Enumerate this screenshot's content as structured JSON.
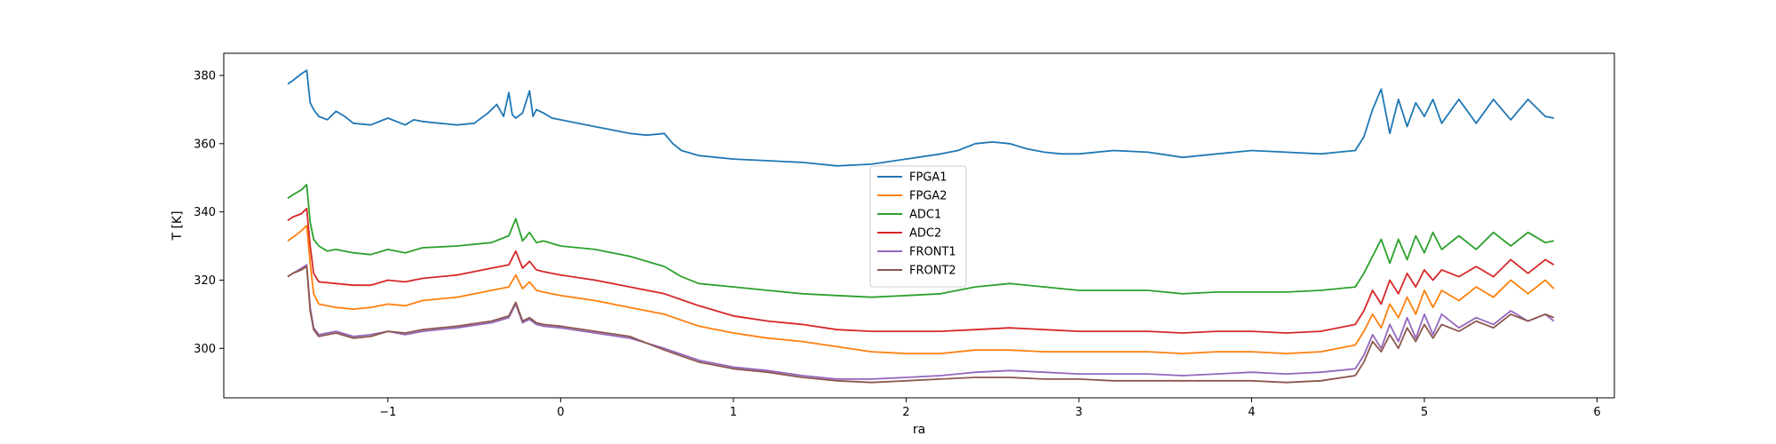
{
  "chart_data": {
    "type": "line",
    "title": "",
    "xlabel": "ra",
    "ylabel": "T [K]",
    "xlim": [
      -1.95,
      6.1
    ],
    "ylim": [
      285.5,
      386.5
    ],
    "xticks": [
      -1,
      0,
      1,
      2,
      3,
      4,
      5,
      6
    ],
    "yticks": [
      300,
      320,
      340,
      360,
      380
    ],
    "grid": false,
    "legend": "center",
    "series": [
      {
        "name": "FPGA1",
        "color": "#1f77b4",
        "x": [
          -1.58,
          -1.55,
          -1.5,
          -1.47,
          -1.45,
          -1.43,
          -1.4,
          -1.35,
          -1.3,
          -1.25,
          -1.2,
          -1.1,
          -1.0,
          -0.9,
          -0.85,
          -0.8,
          -0.7,
          -0.6,
          -0.5,
          -0.42,
          -0.37,
          -0.33,
          -0.3,
          -0.28,
          -0.26,
          -0.22,
          -0.18,
          -0.16,
          -0.14,
          -0.1,
          -0.05,
          0.0,
          0.1,
          0.2,
          0.3,
          0.4,
          0.5,
          0.6,
          0.65,
          0.7,
          0.8,
          0.9,
          1.0,
          1.2,
          1.4,
          1.6,
          1.8,
          2.0,
          2.2,
          2.3,
          2.4,
          2.5,
          2.6,
          2.7,
          2.8,
          2.9,
          3.0,
          3.2,
          3.4,
          3.6,
          3.8,
          4.0,
          4.2,
          4.4,
          4.5,
          4.6,
          4.65,
          4.7,
          4.75,
          4.8,
          4.85,
          4.9,
          4.95,
          5.0,
          5.05,
          5.1,
          5.2,
          5.3,
          5.4,
          5.5,
          5.6,
          5.7,
          5.75
        ],
        "y": [
          377.5,
          378.5,
          380.5,
          381.5,
          372,
          370,
          368,
          367,
          369.5,
          368,
          366,
          365.5,
          367.5,
          365.5,
          367,
          366.5,
          366,
          365.5,
          366,
          369,
          371.5,
          368,
          375,
          368.5,
          367.5,
          369,
          375.5,
          368,
          370,
          369,
          367.5,
          367,
          366,
          365,
          364,
          363,
          362.5,
          363,
          360,
          358,
          356.5,
          356,
          355.5,
          355,
          354.5,
          353.5,
          354,
          355.5,
          357,
          358,
          360,
          360.5,
          360,
          358.5,
          357.5,
          357,
          357,
          358,
          357.5,
          356,
          357,
          358,
          357.5,
          357,
          357.5,
          358,
          362,
          370,
          376,
          363,
          373,
          365,
          372,
          368,
          373,
          366,
          373,
          366,
          373,
          367,
          373,
          368,
          367.5
        ]
      },
      {
        "name": "FPGA2",
        "color": "#ff7f0e",
        "x": [
          -1.58,
          -1.55,
          -1.5,
          -1.47,
          -1.45,
          -1.43,
          -1.4,
          -1.3,
          -1.2,
          -1.1,
          -1.0,
          -0.9,
          -0.8,
          -0.6,
          -0.4,
          -0.3,
          -0.26,
          -0.22,
          -0.18,
          -0.14,
          -0.1,
          0.0,
          0.2,
          0.4,
          0.6,
          0.8,
          1.0,
          1.2,
          1.4,
          1.6,
          1.8,
          2.0,
          2.2,
          2.4,
          2.6,
          2.8,
          3.0,
          3.2,
          3.4,
          3.6,
          3.8,
          4.0,
          4.2,
          4.4,
          4.6,
          4.65,
          4.7,
          4.75,
          4.8,
          4.85,
          4.9,
          4.95,
          5.0,
          5.05,
          5.1,
          5.2,
          5.3,
          5.4,
          5.5,
          5.6,
          5.7,
          5.75
        ],
        "y": [
          331.5,
          332.5,
          334.5,
          336,
          325,
          316,
          313,
          312,
          311.5,
          312,
          313,
          312.5,
          314,
          315,
          317,
          318,
          321.5,
          317.5,
          319.5,
          317,
          316.5,
          315.5,
          314,
          312,
          310,
          306.5,
          304.5,
          303,
          302,
          300.5,
          299,
          298.5,
          298.5,
          299.5,
          299.5,
          299,
          299,
          299,
          299,
          298.5,
          299,
          299,
          298.5,
          299,
          301,
          305,
          310,
          306,
          313,
          309,
          315,
          310,
          317,
          312,
          317,
          314,
          318,
          315,
          320,
          316,
          320,
          317.5
        ]
      },
      {
        "name": "ADC1",
        "color": "#2ca02c",
        "x": [
          -1.58,
          -1.55,
          -1.5,
          -1.47,
          -1.45,
          -1.43,
          -1.4,
          -1.35,
          -1.3,
          -1.2,
          -1.1,
          -1.0,
          -0.9,
          -0.8,
          -0.6,
          -0.4,
          -0.3,
          -0.26,
          -0.22,
          -0.18,
          -0.14,
          -0.1,
          0.0,
          0.2,
          0.4,
          0.6,
          0.7,
          0.8,
          1.0,
          1.2,
          1.4,
          1.6,
          1.8,
          2.0,
          2.2,
          2.4,
          2.6,
          2.8,
          3.0,
          3.2,
          3.4,
          3.6,
          3.8,
          4.0,
          4.2,
          4.4,
          4.6,
          4.65,
          4.7,
          4.75,
          4.8,
          4.85,
          4.9,
          4.95,
          5.0,
          5.05,
          5.1,
          5.2,
          5.3,
          5.4,
          5.5,
          5.6,
          5.7,
          5.75
        ],
        "y": [
          344,
          345,
          346.5,
          348,
          337,
          332,
          330,
          328.5,
          329,
          328,
          327.5,
          329,
          328,
          329.5,
          330,
          331,
          333,
          338,
          331.5,
          334,
          331,
          331.5,
          330,
          329,
          327,
          324,
          321,
          319,
          318,
          317,
          316,
          315.5,
          315,
          315.5,
          316,
          318,
          319,
          318,
          317,
          317,
          317,
          316,
          316.5,
          316.5,
          316.5,
          317,
          318,
          322,
          327,
          332,
          325,
          332,
          326,
          333,
          328,
          334,
          329,
          333,
          329,
          334,
          330,
          334,
          331,
          331.5
        ]
      },
      {
        "name": "ADC2",
        "color": "#d62728",
        "x": [
          -1.58,
          -1.55,
          -1.5,
          -1.47,
          -1.45,
          -1.43,
          -1.4,
          -1.3,
          -1.2,
          -1.1,
          -1.0,
          -0.9,
          -0.8,
          -0.6,
          -0.4,
          -0.3,
          -0.26,
          -0.22,
          -0.18,
          -0.14,
          -0.1,
          0.0,
          0.2,
          0.4,
          0.6,
          0.8,
          1.0,
          1.2,
          1.4,
          1.6,
          1.8,
          2.0,
          2.2,
          2.4,
          2.6,
          2.8,
          3.0,
          3.2,
          3.4,
          3.6,
          3.8,
          4.0,
          4.2,
          4.4,
          4.6,
          4.65,
          4.7,
          4.75,
          4.8,
          4.85,
          4.9,
          4.95,
          5.0,
          5.05,
          5.1,
          5.2,
          5.3,
          5.4,
          5.5,
          5.6,
          5.7,
          5.75
        ],
        "y": [
          337.5,
          338.5,
          339.5,
          341,
          330,
          322,
          319.5,
          319,
          318.5,
          318.5,
          320,
          319.5,
          320.5,
          321.5,
          323.5,
          324.5,
          328.5,
          323.5,
          325.5,
          323,
          322.5,
          321.5,
          320,
          318,
          316,
          312.5,
          309.5,
          308,
          307,
          305.5,
          305,
          305,
          305,
          305.5,
          306,
          305.5,
          305,
          305,
          305,
          304.5,
          305,
          305,
          304.5,
          305,
          307,
          311,
          317,
          313,
          320,
          316,
          322,
          318,
          323,
          320,
          323,
          321,
          324,
          321,
          326,
          322,
          326,
          324.5
        ]
      },
      {
        "name": "FRONT1",
        "color": "#9467bd",
        "x": [
          -1.58,
          -1.55,
          -1.5,
          -1.47,
          -1.45,
          -1.43,
          -1.4,
          -1.35,
          -1.3,
          -1.2,
          -1.1,
          -1.0,
          -0.9,
          -0.8,
          -0.6,
          -0.4,
          -0.3,
          -0.26,
          -0.22,
          -0.18,
          -0.14,
          -0.1,
          0.0,
          0.2,
          0.4,
          0.6,
          0.8,
          1.0,
          1.2,
          1.4,
          1.6,
          1.8,
          2.0,
          2.2,
          2.3,
          2.4,
          2.6,
          2.8,
          3.0,
          3.2,
          3.4,
          3.6,
          3.8,
          4.0,
          4.2,
          4.4,
          4.6,
          4.65,
          4.7,
          4.75,
          4.8,
          4.85,
          4.9,
          4.95,
          5.0,
          5.05,
          5.1,
          5.2,
          5.3,
          5.4,
          5.5,
          5.6,
          5.7,
          5.75
        ],
        "y": [
          321,
          322,
          323.5,
          324.5,
          312,
          306,
          304,
          304.5,
          305,
          303.5,
          304,
          305,
          304,
          305,
          306,
          307.5,
          309,
          313,
          307.5,
          308.5,
          307,
          306.5,
          306,
          304.5,
          303,
          300,
          296.5,
          294.5,
          293.5,
          292,
          291,
          291,
          291.5,
          292,
          292.5,
          293,
          293.5,
          293,
          292.5,
          292.5,
          292.5,
          292,
          292.5,
          293,
          292.5,
          293,
          294,
          298,
          304,
          300,
          307,
          302,
          309,
          303,
          310,
          304,
          310,
          306,
          309,
          307,
          311,
          308,
          310,
          308
        ]
      },
      {
        "name": "FRONT2",
        "color": "#8c564b",
        "x": [
          -1.58,
          -1.55,
          -1.5,
          -1.47,
          -1.45,
          -1.43,
          -1.4,
          -1.35,
          -1.3,
          -1.2,
          -1.1,
          -1.0,
          -0.9,
          -0.8,
          -0.6,
          -0.4,
          -0.3,
          -0.26,
          -0.22,
          -0.18,
          -0.14,
          -0.1,
          0.0,
          0.2,
          0.4,
          0.6,
          0.8,
          1.0,
          1.2,
          1.4,
          1.6,
          1.8,
          2.0,
          2.2,
          2.4,
          2.6,
          2.8,
          3.0,
          3.2,
          3.4,
          3.6,
          3.8,
          4.0,
          4.2,
          4.4,
          4.6,
          4.65,
          4.7,
          4.75,
          4.8,
          4.85,
          4.9,
          4.95,
          5.0,
          5.05,
          5.1,
          5.2,
          5.3,
          5.4,
          5.5,
          5.6,
          5.7,
          5.75
        ],
        "y": [
          321,
          322,
          323,
          324,
          311,
          305.5,
          303.5,
          304,
          304.5,
          303,
          303.5,
          305,
          304.5,
          305.5,
          306.5,
          308,
          309.5,
          313.5,
          308,
          309,
          307.5,
          307,
          306.5,
          305,
          303.5,
          299.5,
          296,
          294,
          293,
          291.5,
          290.5,
          290,
          290.5,
          291,
          291.5,
          291.5,
          291,
          291,
          290.5,
          290.5,
          290.5,
          290.5,
          290.5,
          290,
          290.5,
          292,
          296,
          302,
          299,
          304,
          300,
          306,
          302,
          307,
          303,
          307,
          305,
          308,
          306,
          310,
          308,
          310,
          309
        ]
      }
    ]
  }
}
